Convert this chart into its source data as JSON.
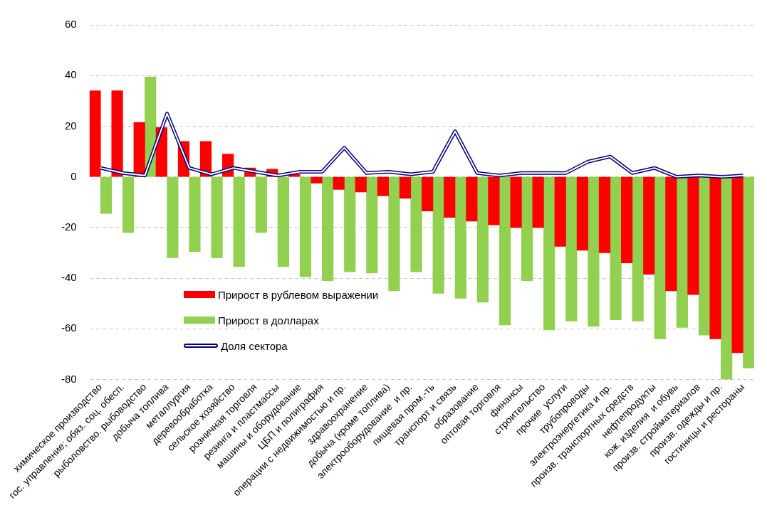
{
  "chart_data": {
    "type": "bar",
    "categories": [
      "химическое производство",
      "гос. управление; обяз. соц. обесп.",
      "рыболовство. рыбоводство",
      "добыча топлива",
      "металлургия",
      "деревообработка",
      "сельское хозяйство",
      "розничная торговля",
      "резинга и пластмассы",
      "машины и оборудование",
      "ЦБП и полиграфия",
      "операции с недвижимостью и пр.",
      "здравоохранение",
      "добыча (кроме топлива)",
      "электрооборудование  и пр.",
      "пищевая пром.-ть",
      "транспорт и связь",
      "образование",
      "оптовая торговля",
      "финансы",
      "строительство",
      "прочие  услуги",
      "трубопроводы",
      "электроэнергетика и пр.",
      "произв. транспортных средств",
      "нефтепродукты",
      "кож. изделия  и обувь",
      "произв. стройматериалов",
      "произв. одежды и пр.",
      "гостиницы и рестораны"
    ],
    "series": [
      {
        "name": "Прирост  в рублевом выражении",
        "color": "#ff0000",
        "values": [
          34,
          34,
          21.5,
          19.5,
          14,
          14,
          9,
          3.5,
          3,
          1,
          -2.5,
          -5,
          -6,
          -7.5,
          -8.5,
          -13.5,
          -16,
          -17.5,
          -19,
          -20,
          -20,
          -27.5,
          -29,
          -30,
          -34,
          -38.5,
          -45,
          -46.5,
          -64,
          -69.5
        ]
      },
      {
        "name": "Прирост  в долларах",
        "color": "#92d050",
        "values": [
          -14.5,
          -22,
          39.5,
          -32,
          -29.5,
          -32,
          -35.5,
          -22,
          -35.5,
          -39.5,
          -41,
          -37.5,
          -38,
          -45,
          -37.5,
          -46,
          -48,
          -49.5,
          -58.5,
          -41,
          -60.5,
          -57,
          -59,
          -56.5,
          -57,
          -64,
          -59.5,
          -62.5,
          -80,
          -75.5
        ]
      },
      {
        "name": "Доля сектора",
        "type": "line",
        "color": "#000080",
        "values": [
          3.5,
          1.5,
          0.5,
          25,
          3.5,
          1,
          3.5,
          2,
          0.5,
          2,
          2,
          11.5,
          1.5,
          2,
          1,
          2,
          18,
          1.5,
          0.5,
          1.5,
          1.5,
          1.5,
          6,
          8,
          1.5,
          3.5,
          0,
          0.5,
          0,
          0.5
        ]
      }
    ],
    "ylim": [
      -80,
      60
    ],
    "yticks": [
      -80,
      -60,
      -40,
      -20,
      0,
      20,
      40,
      60
    ],
    "grid": "y",
    "legend": "bottom left"
  }
}
